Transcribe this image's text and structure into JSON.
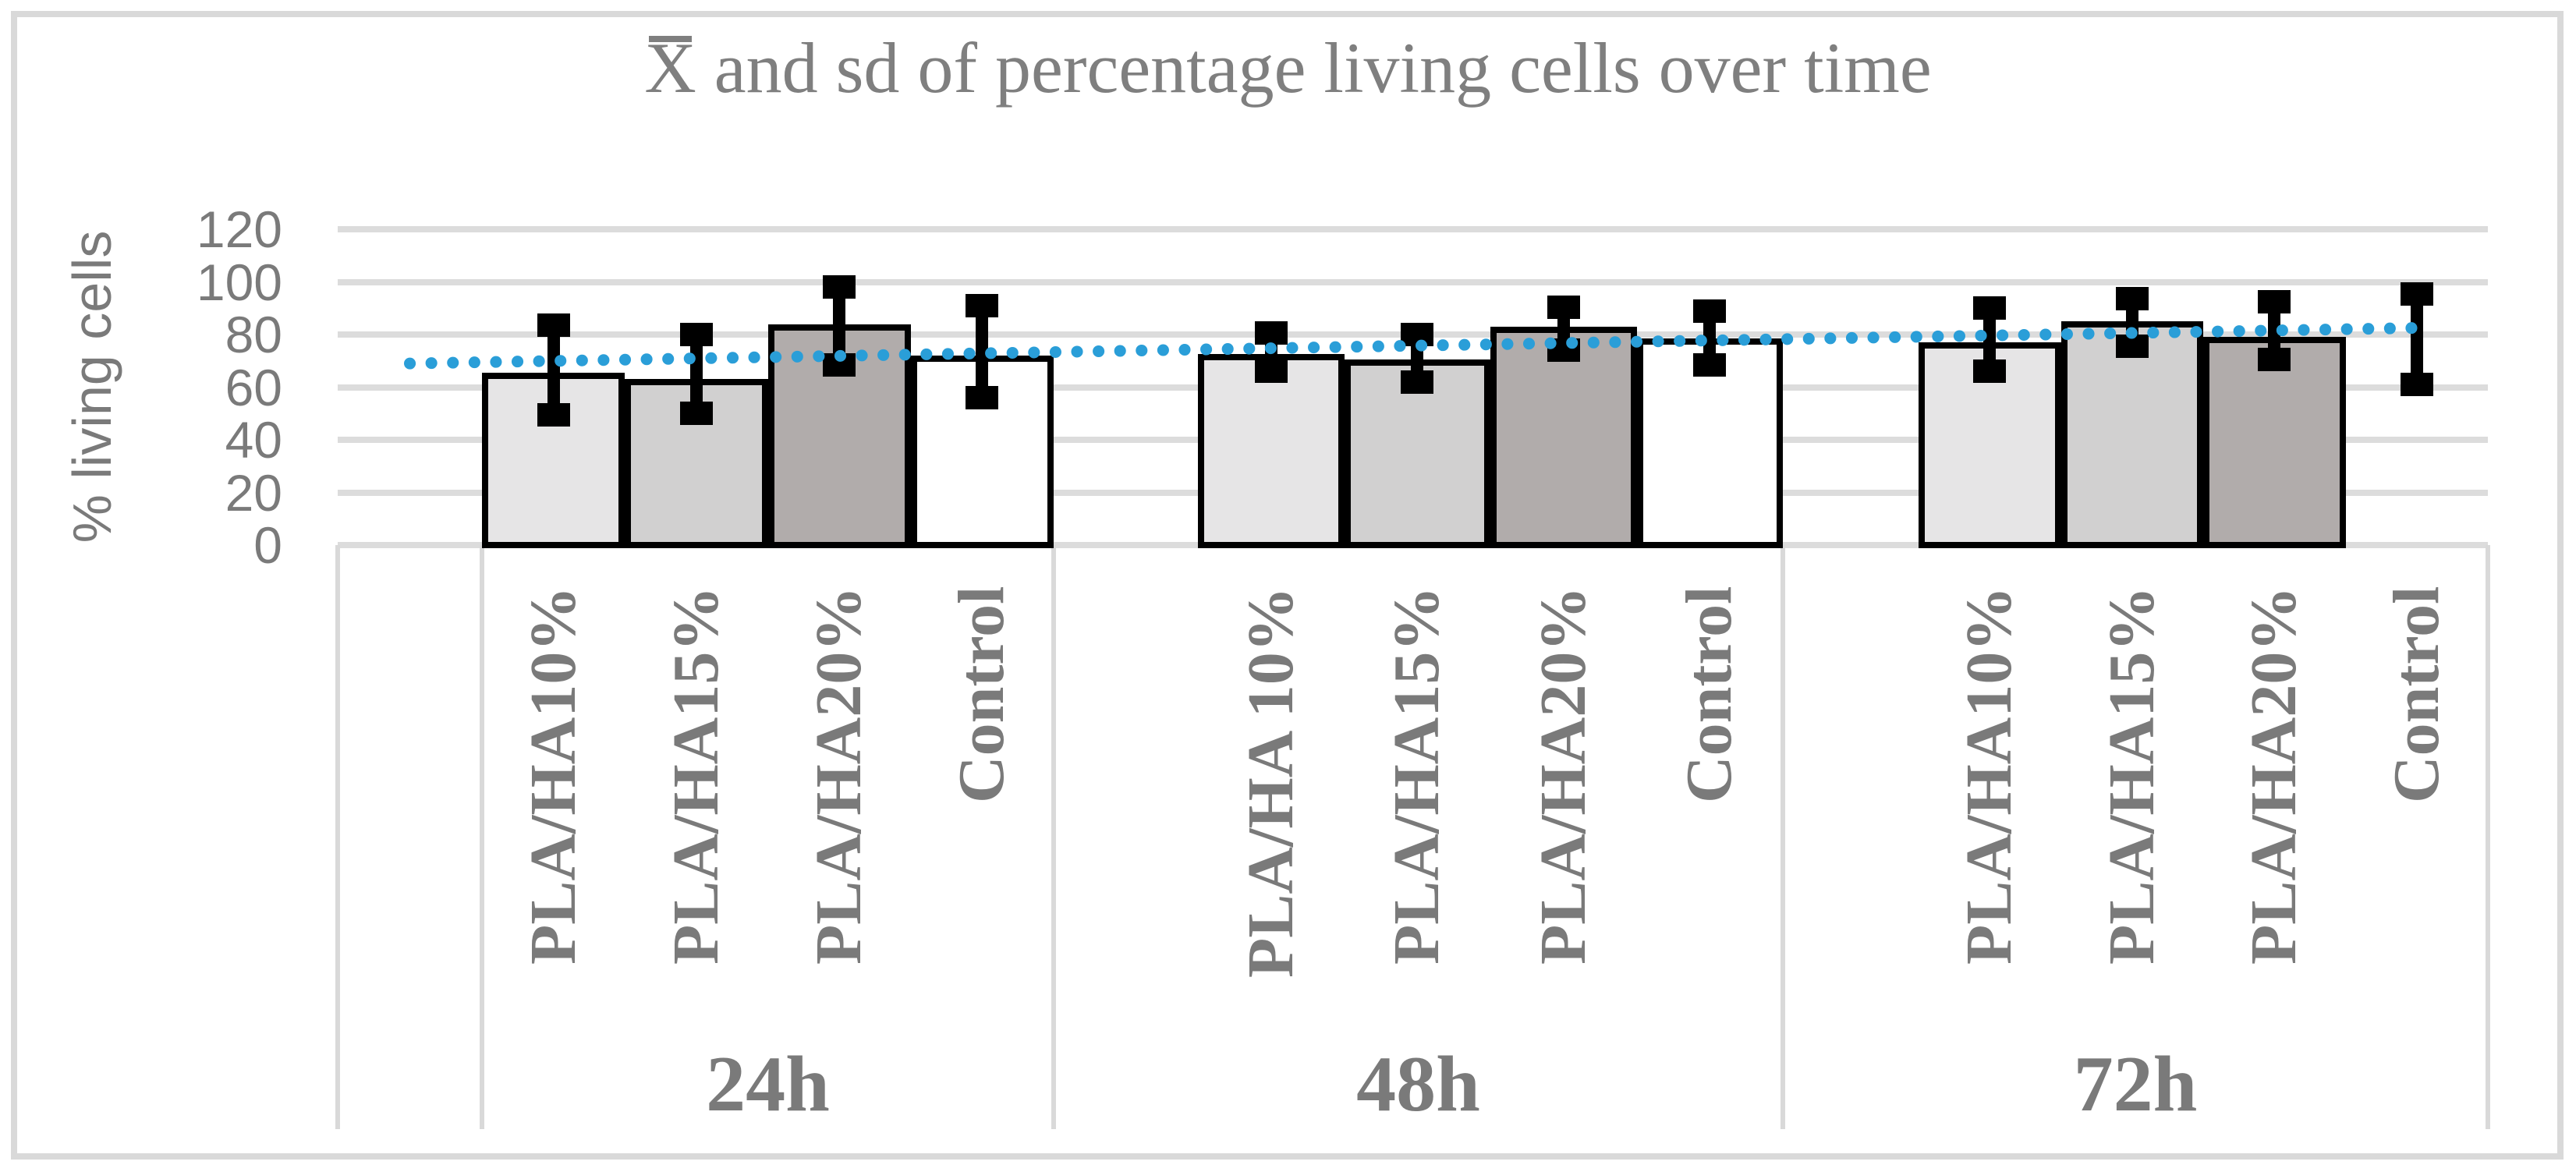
{
  "chart_data": {
    "type": "bar",
    "title": "X̄ and sd of percentage living cells over time",
    "title_mean_symbol": "X",
    "title_rest": " and sd of percentage living cells over time",
    "ylabel": "% living cells",
    "ylim": [
      0,
      120
    ],
    "y_ticks": [
      120,
      100,
      80,
      60,
      40,
      20,
      0
    ],
    "grid": true,
    "legend_position": "none",
    "bar_fills": [
      "#e6e5e6",
      "#d1d0d0",
      "#b1acab",
      "#ffffff"
    ],
    "groups": [
      {
        "label": "24h",
        "bars": [
          {
            "label": "PLA/HA10%",
            "value": 65.5,
            "err_lo": 49.5,
            "err_hi": 83.5
          },
          {
            "label": "PLA/HA15%",
            "value": 63,
            "err_lo": 50,
            "err_hi": 80
          },
          {
            "label": "PLA/HA20%",
            "value": 84,
            "err_lo": 68.5,
            "err_hi": 98
          },
          {
            "label": "Control",
            "value": 72,
            "err_lo": 56,
            "err_hi": 91
          }
        ]
      },
      {
        "label": "48h",
        "bars": [
          {
            "label": "PLA/HA 10%",
            "value": 72.5,
            "err_lo": 66,
            "err_hi": 80.5
          },
          {
            "label": "PLA/HA15%",
            "value": 70.5,
            "err_lo": 62,
            "err_hi": 80
          },
          {
            "label": "PLA/HA20%",
            "value": 83,
            "err_lo": 74,
            "err_hi": 90.5
          },
          {
            "label": "Control",
            "value": 78.5,
            "err_lo": 68.5,
            "err_hi": 89
          }
        ]
      },
      {
        "label": "72h",
        "bars": [
          {
            "label": "PLA/HA10%",
            "value": 77,
            "err_lo": 66,
            "err_hi": 90
          },
          {
            "label": "PLA/HA15%",
            "value": 85,
            "err_lo": 75.5,
            "err_hi": 93.5
          },
          {
            "label": "PLA/HA20%",
            "value": 79,
            "err_lo": 70.5,
            "err_hi": 92.5
          },
          {
            "label": "Control",
            "value": null,
            "bar_visible": false,
            "err_lo": 61,
            "err_hi": 95.5
          }
        ]
      }
    ],
    "trendline": {
      "style": "dotted",
      "color": "#2a9ed8",
      "start_value": 69,
      "end_value": 82.5
    },
    "colors": {
      "bar_border": "#000000",
      "error_bar": "#000000",
      "gridline": "#dcdcdc",
      "separator": "#d9d9d9",
      "frame": "#d9d9d9",
      "text": "#7a7a7a",
      "title_text": "#7f7f7f"
    }
  }
}
